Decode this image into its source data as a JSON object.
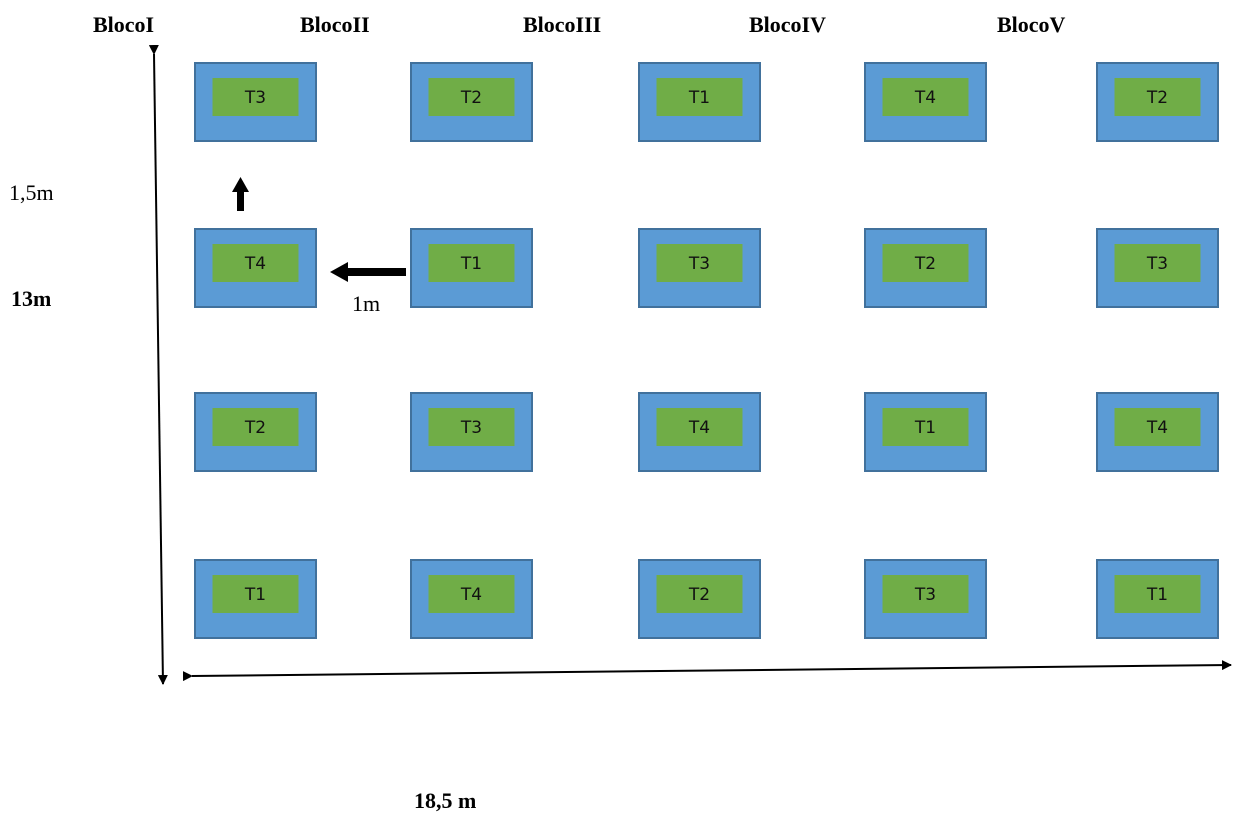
{
  "blocks": [
    "BlocoI",
    "BlocoII",
    "BlocoIII",
    "BlocoIV",
    "BlocoV"
  ],
  "plots": [
    [
      "T3",
      "T2",
      "T1",
      "T4",
      "T2"
    ],
    [
      "T4",
      "T1",
      "T3",
      "T2",
      "T3"
    ],
    [
      "T2",
      "T3",
      "T4",
      "T1",
      "T4"
    ],
    [
      "T1",
      "T4",
      "T2",
      "T3",
      "T1"
    ]
  ],
  "dimensions": {
    "row_spacing": "1,5m",
    "col_spacing": "1m",
    "total_height": "13m",
    "total_width": "18,5 m"
  },
  "colors": {
    "plot_outer": "#5b9bd5",
    "plot_outer_border": "#41719c",
    "plot_inner": "#70ad47"
  }
}
